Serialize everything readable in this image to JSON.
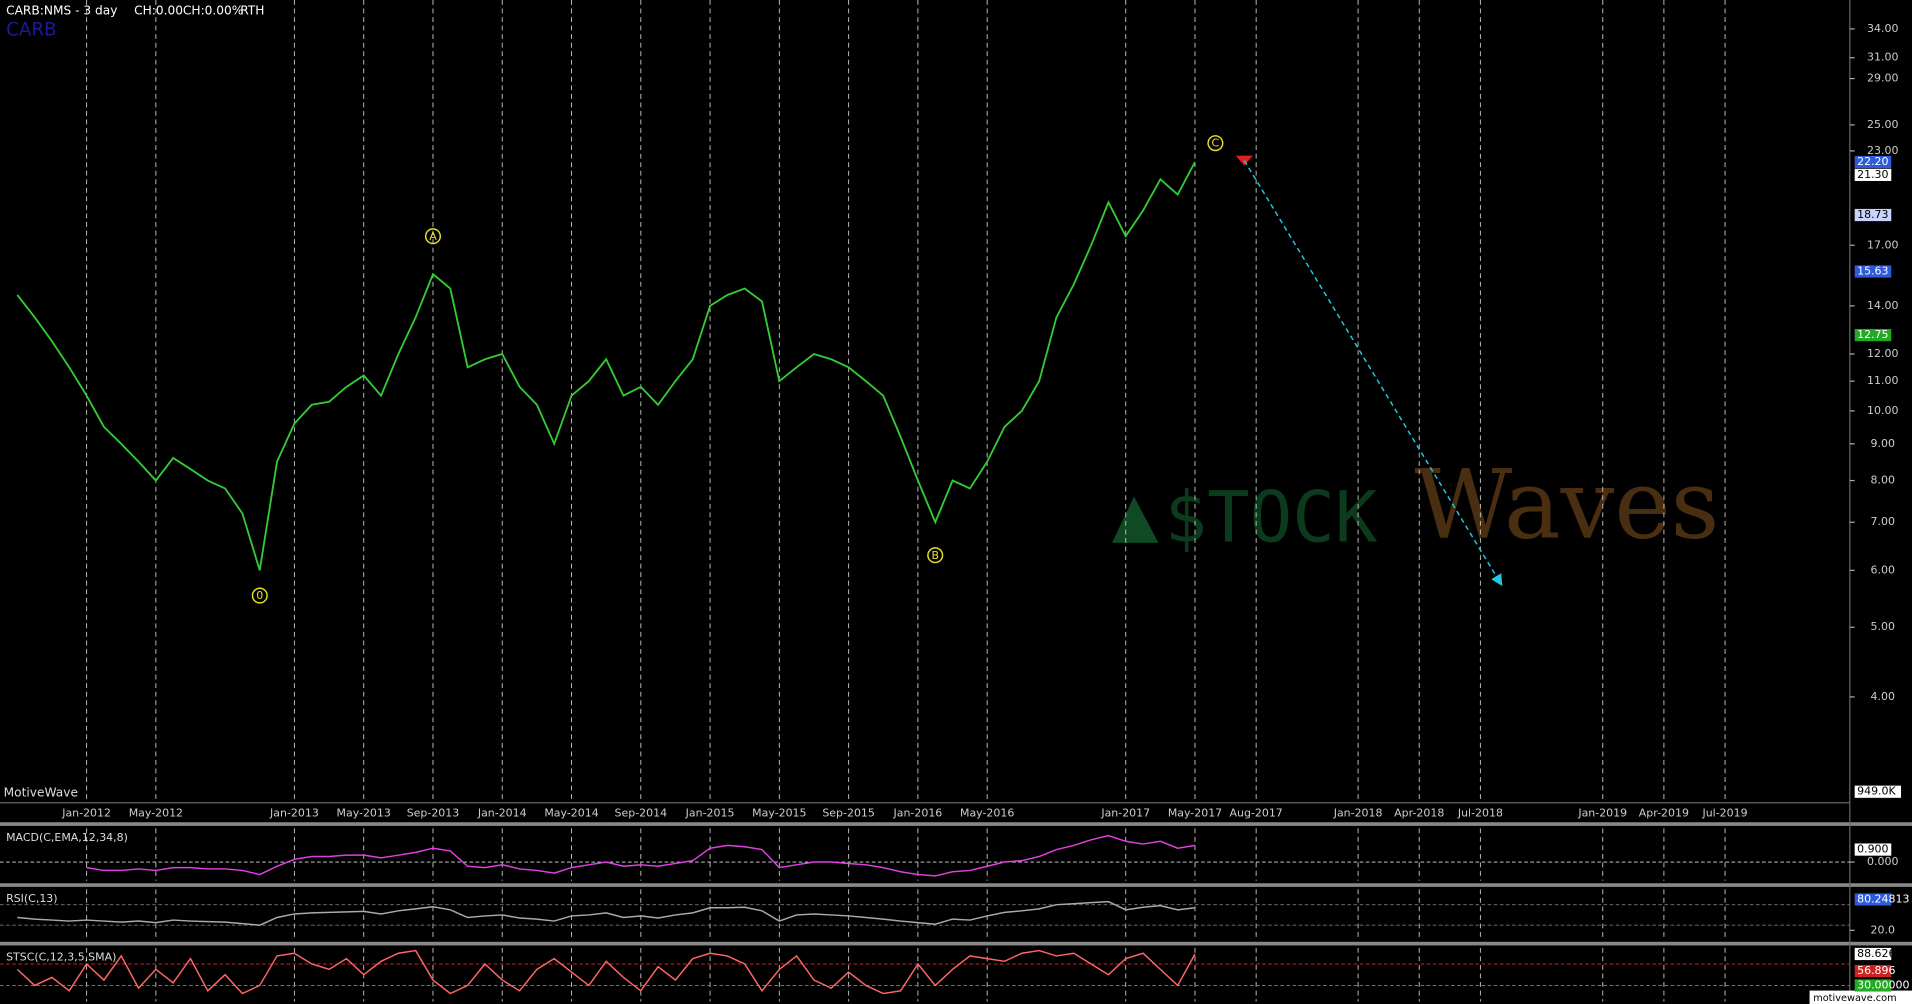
{
  "chart_data": [
    {
      "type": "line",
      "title": "CARB:NMS - 3 day",
      "status": [
        "CH:0.00",
        "CH:0.00%",
        "RTH"
      ],
      "symbol": "CARB",
      "brand": "MotiveWave",
      "footer": "motivewave.com",
      "log": true,
      "grid": true,
      "color": "#33cc33",
      "x": [
        "Sep-2011",
        "Oct-2011",
        "Nov-2011",
        "Dec-2011",
        "Jan-2012",
        "Feb-2012",
        "Mar-2012",
        "Apr-2012",
        "May-2012",
        "Jun-2012",
        "Jul-2012",
        "Aug-2012",
        "Sep-2012",
        "Oct-2012",
        "Nov-2012",
        "Dec-2012",
        "Jan-2013",
        "Feb-2013",
        "Mar-2013",
        "Apr-2013",
        "May-2013",
        "Jun-2013",
        "Jul-2013",
        "Aug-2013",
        "Sep-2013",
        "Oct-2013",
        "Nov-2013",
        "Dec-2013",
        "Jan-2014",
        "Feb-2014",
        "Mar-2014",
        "Apr-2014",
        "May-2014",
        "Jun-2014",
        "Jul-2014",
        "Aug-2014",
        "Sep-2014",
        "Oct-2014",
        "Nov-2014",
        "Dec-2014",
        "Jan-2015",
        "Feb-2015",
        "Mar-2015",
        "Apr-2015",
        "May-2015",
        "Jun-2015",
        "Jul-2015",
        "Aug-2015",
        "Sep-2015",
        "Oct-2015",
        "Nov-2015",
        "Dec-2015",
        "Jan-2016",
        "Feb-2016",
        "Mar-2016",
        "Apr-2016",
        "May-2016",
        "Jun-2016",
        "Jul-2016",
        "Aug-2016",
        "Sep-2016",
        "Oct-2016",
        "Nov-2016",
        "Dec-2016",
        "Jan-2017",
        "Feb-2017",
        "Mar-2017",
        "Apr-2017",
        "May-2017"
      ],
      "values": [
        14.5,
        13.5,
        12.5,
        11.5,
        10.5,
        9.5,
        9.0,
        8.5,
        8.0,
        8.6,
        8.3,
        8.0,
        7.8,
        7.2,
        6.0,
        8.5,
        9.6,
        10.2,
        10.3,
        10.8,
        11.2,
        10.5,
        12.0,
        13.5,
        15.5,
        14.8,
        11.5,
        11.8,
        12.0,
        10.8,
        10.2,
        9.0,
        10.5,
        11.0,
        11.8,
        10.5,
        10.8,
        10.2,
        11.0,
        11.8,
        14.0,
        14.5,
        14.8,
        14.2,
        11.0,
        11.5,
        12.0,
        11.8,
        11.5,
        11.0,
        10.5,
        9.2,
        8.0,
        7.0,
        8.0,
        7.8,
        8.5,
        9.5,
        10.0,
        11.0,
        13.5,
        15.0,
        17.0,
        19.5,
        17.5,
        19.0,
        21.0,
        20.0,
        22.2
      ],
      "xlim": [
        "Aug-2011",
        "Jan-2020"
      ],
      "xticks": [
        "Jan-2012",
        "May-2012",
        "Jan-2013",
        "May-2013",
        "Sep-2013",
        "Jan-2014",
        "May-2014",
        "Sep-2014",
        "Jan-2015",
        "May-2015",
        "Sep-2015",
        "Jan-2016",
        "May-2016",
        "Jan-2017",
        "May-2017",
        "Aug-2017",
        "Jan-2018",
        "Apr-2018",
        "Jul-2018",
        "Jan-2019",
        "Apr-2019",
        "Jul-2019"
      ],
      "ylim": [
        2.85,
        37.3
      ],
      "yticks": [
        {
          "value": 34,
          "label": "34.00"
        },
        {
          "value": 31,
          "label": "31.00"
        },
        {
          "value": 29,
          "label": "29.00"
        },
        {
          "value": 25,
          "label": "25.00"
        },
        {
          "value": 23,
          "label": "23.00"
        },
        {
          "value": 17,
          "label": "17.00"
        },
        {
          "value": 14,
          "label": "14.00"
        },
        {
          "value": 12,
          "label": "12.00"
        },
        {
          "value": 11,
          "label": "11.00"
        },
        {
          "value": 10,
          "label": "10.00"
        },
        {
          "value": 9,
          "label": "9.00"
        },
        {
          "value": 8,
          "label": "8.00"
        },
        {
          "value": 7,
          "label": "7.00"
        },
        {
          "value": 6,
          "label": "6.00"
        },
        {
          "value": 5,
          "label": "5.00"
        },
        {
          "value": 4,
          "label": "4.00"
        }
      ],
      "markers": [
        {
          "value": 22.2,
          "label": "22.20",
          "color": "#2f5bd8"
        },
        {
          "value": 21.3,
          "label": "21.30",
          "color": "#ffffff"
        },
        {
          "value": 18.73,
          "label": "18.73",
          "color": "#c8d4ff"
        },
        {
          "value": 15.63,
          "label": "15.63",
          "color": "#2f5bd8"
        },
        {
          "value": 12.75,
          "label": "12.75",
          "color": "#22aa22"
        }
      ],
      "volume_label": "949.0K",
      "waves": [
        {
          "label": "0",
          "x": "Nov-2012",
          "value": 5.8
        },
        {
          "label": "A",
          "x": "Sep-2013",
          "value": 16.7
        },
        {
          "label": "B",
          "x": "Feb-2016",
          "value": 6.6
        },
        {
          "label": "C",
          "x": "Jun-2017",
          "value": 22.5
        }
      ],
      "projection": {
        "from": {
          "x": "Jul-2017",
          "value": 22.3
        },
        "to": {
          "x": "Aug-2018",
          "value": 5.75
        }
      },
      "watermark": [
        "$TOCK",
        "Waves"
      ]
    },
    {
      "type": "line",
      "title": "MACD(C,EMA,12,34,8)",
      "color": "#e040e0",
      "values": [
        null,
        null,
        null,
        null,
        -0.4,
        -0.6,
        -0.6,
        -0.5,
        -0.6,
        -0.4,
        -0.4,
        -0.5,
        -0.5,
        -0.6,
        -0.9,
        -0.3,
        0.2,
        0.4,
        0.4,
        0.5,
        0.5,
        0.3,
        0.5,
        0.7,
        1.0,
        0.8,
        -0.3,
        -0.4,
        -0.2,
        -0.5,
        -0.6,
        -0.8,
        -0.4,
        -0.2,
        0.0,
        -0.3,
        -0.2,
        -0.3,
        -0.1,
        0.1,
        1.0,
        1.2,
        1.1,
        0.9,
        -0.4,
        -0.2,
        0.0,
        0.0,
        -0.1,
        -0.2,
        -0.4,
        -0.7,
        -0.9,
        -1.0,
        -0.7,
        -0.6,
        -0.3,
        0.0,
        0.1,
        0.4,
        0.9,
        1.2,
        1.6,
        1.9,
        1.5,
        1.3,
        1.5,
        1.0,
        1.2
      ],
      "ylim": [
        -1.35,
        2.43
      ],
      "yticks": [
        {
          "value": 0,
          "label": "0.000"
        }
      ],
      "markers": [
        {
          "value": 0.9,
          "label": "0.900",
          "color": "#ffffff"
        }
      ],
      "levels": [
        {
          "value": 0,
          "color": "#dddddd"
        }
      ]
    },
    {
      "type": "line",
      "title": "RSI(C,13)",
      "color": "#aaaaaa",
      "values": [
        45,
        42,
        40,
        38,
        40,
        38,
        36,
        38,
        35,
        40,
        38,
        37,
        36,
        33,
        30,
        45,
        52,
        54,
        55,
        56,
        57,
        52,
        58,
        62,
        66,
        60,
        45,
        48,
        50,
        44,
        42,
        38,
        48,
        50,
        54,
        45,
        48,
        44,
        50,
        54,
        64,
        64,
        65,
        58,
        38,
        50,
        52,
        50,
        48,
        45,
        42,
        38,
        35,
        32,
        42,
        40,
        48,
        55,
        58,
        62,
        70,
        72,
        74,
        76,
        60,
        65,
        68,
        60,
        64
      ],
      "ylim": [
        0,
        100
      ],
      "yticks": [
        {
          "value": 20,
          "label": "20.0"
        }
      ],
      "markers": [
        {
          "value": 80.24813,
          "label": "80.24813",
          "color": "#2f5bd8"
        }
      ],
      "levels": [
        {
          "value": 70,
          "color": "#777777"
        },
        {
          "value": 30,
          "color": "#777777"
        }
      ]
    },
    {
      "type": "line",
      "title": "STSC(C,12,3,5,SMA)",
      "color": "#ff6666",
      "values": [
        60,
        30,
        45,
        20,
        70,
        40,
        85,
        25,
        60,
        35,
        80,
        20,
        50,
        15,
        30,
        85,
        90,
        70,
        60,
        80,
        50,
        75,
        90,
        95,
        40,
        15,
        30,
        70,
        40,
        20,
        60,
        80,
        55,
        30,
        75,
        45,
        20,
        65,
        40,
        80,
        90,
        85,
        70,
        20,
        60,
        85,
        40,
        25,
        55,
        30,
        15,
        20,
        70,
        30,
        60,
        85,
        80,
        75,
        90,
        95,
        85,
        90,
        70,
        50,
        80,
        90,
        60,
        30,
        88.626
      ],
      "ylim": [
        0,
        100
      ],
      "yticks": [],
      "markers": [
        {
          "value": 88.626,
          "label": "88.626",
          "color": "#ffffff"
        },
        {
          "value": 56.896,
          "label": "56.896",
          "color": "#cc2222"
        },
        {
          "value": 30,
          "label": "30.00000",
          "color": "#22aa22"
        }
      ],
      "levels": [
        {
          "value": 70,
          "color": "#cc2222"
        },
        {
          "value": 30,
          "color": "#22aa22"
        }
      ]
    }
  ]
}
